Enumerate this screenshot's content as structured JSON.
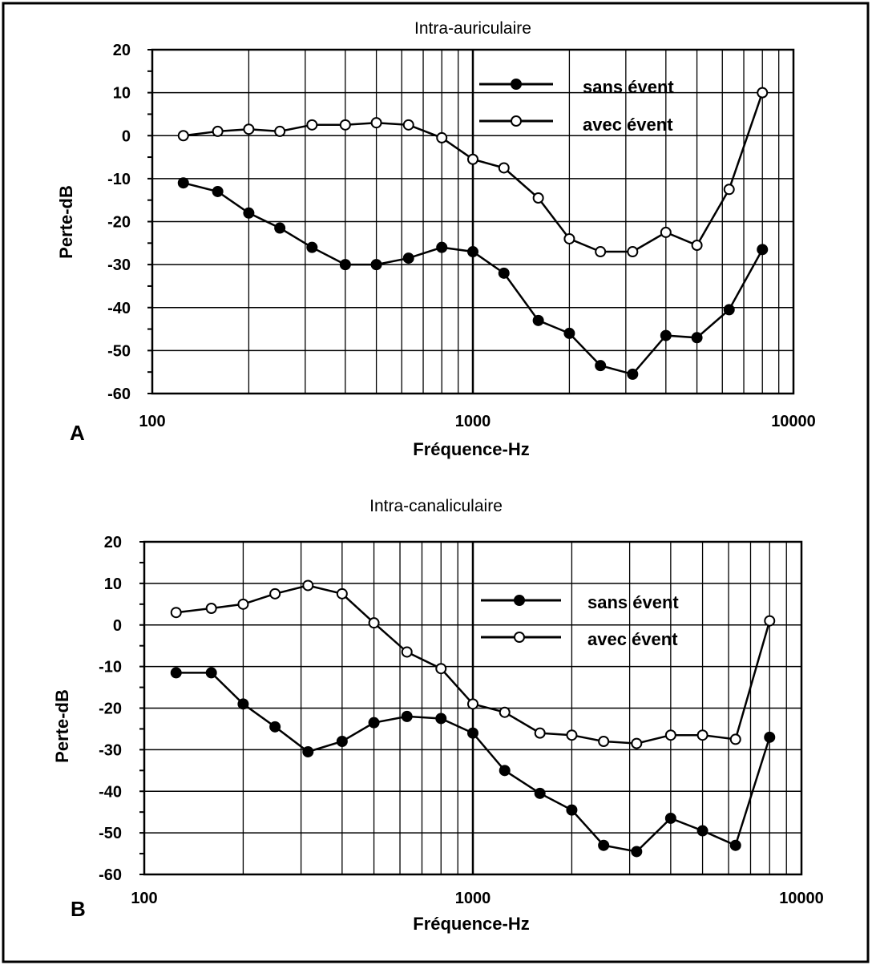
{
  "chart_data": [
    {
      "panel_label": "A",
      "type": "line",
      "title": "Intra-auriculaire",
      "xlabel": "Fréquence-Hz",
      "ylabel": "Perte-dB",
      "xscale": "log",
      "xlim": [
        100,
        10000
      ],
      "ylim": [
        -60,
        20
      ],
      "xticks": [
        "100",
        "1000",
        "10000"
      ],
      "yticks": [
        "20",
        "10",
        "0",
        "-10",
        "-20",
        "-30",
        "-40",
        "-50",
        "-60"
      ],
      "grid": true,
      "legend_position": "top-right",
      "series": [
        {
          "name": "sans évent",
          "marker": "filled-circle",
          "points": [
            [
              125,
              -11
            ],
            [
              160,
              -13
            ],
            [
              200,
              -18
            ],
            [
              250,
              -21.5
            ],
            [
              315,
              -26
            ],
            [
              400,
              -30
            ],
            [
              500,
              -30
            ],
            [
              630,
              -28.5
            ],
            [
              800,
              -26
            ],
            [
              1000,
              -27
            ],
            [
              1250,
              -32
            ],
            [
              1600,
              -43
            ],
            [
              2000,
              -46
            ],
            [
              2500,
              -53.5
            ],
            [
              3150,
              -55.5
            ],
            [
              4000,
              -46.5
            ],
            [
              5000,
              -47
            ],
            [
              6300,
              -40.5
            ],
            [
              8000,
              -26.5
            ]
          ]
        },
        {
          "name": "avec évent",
          "marker": "open-circle",
          "points": [
            [
              125,
              0
            ],
            [
              160,
              1
            ],
            [
              200,
              1.5
            ],
            [
              250,
              1
            ],
            [
              315,
              2.5
            ],
            [
              400,
              2.5
            ],
            [
              500,
              3
            ],
            [
              630,
              2.5
            ],
            [
              800,
              -0.5
            ],
            [
              1000,
              -5.5
            ],
            [
              1250,
              -7.5
            ],
            [
              1600,
              -14.5
            ],
            [
              2000,
              -24
            ],
            [
              2500,
              -27
            ],
            [
              3150,
              -27
            ],
            [
              4000,
              -22.5
            ],
            [
              5000,
              -25.5
            ],
            [
              6300,
              -12.5
            ],
            [
              8000,
              10
            ]
          ]
        }
      ]
    },
    {
      "panel_label": "B",
      "type": "line",
      "title": "Intra-canaliculaire",
      "xlabel": "Fréquence-Hz",
      "ylabel": "Perte-dB",
      "xscale": "log",
      "xlim": [
        100,
        10000
      ],
      "ylim": [
        -60,
        20
      ],
      "xticks": [
        "100",
        "1000",
        "10000"
      ],
      "yticks": [
        "20",
        "10",
        "0",
        "-10",
        "-20",
        "-30",
        "-40",
        "-50",
        "-60"
      ],
      "grid": true,
      "legend_position": "top-right",
      "series": [
        {
          "name": "sans évent",
          "marker": "filled-circle",
          "points": [
            [
              125,
              -11.5
            ],
            [
              160,
              -11.5
            ],
            [
              200,
              -19
            ],
            [
              250,
              -24.5
            ],
            [
              315,
              -30.5
            ],
            [
              400,
              -28
            ],
            [
              500,
              -23.5
            ],
            [
              630,
              -22
            ],
            [
              800,
              -22.5
            ],
            [
              1000,
              -26
            ],
            [
              1250,
              -35
            ],
            [
              1600,
              -40.5
            ],
            [
              2000,
              -44.5
            ],
            [
              2500,
              -53
            ],
            [
              3150,
              -54.5
            ],
            [
              4000,
              -46.5
            ],
            [
              5000,
              -49.5
            ],
            [
              6300,
              -53
            ],
            [
              8000,
              -27
            ]
          ]
        },
        {
          "name": "avec évent",
          "marker": "open-circle",
          "points": [
            [
              125,
              3
            ],
            [
              160,
              4
            ],
            [
              200,
              5
            ],
            [
              250,
              7.5
            ],
            [
              315,
              9.5
            ],
            [
              400,
              7.5
            ],
            [
              500,
              0.5
            ],
            [
              630,
              -6.5
            ],
            [
              800,
              -10.5
            ],
            [
              1000,
              -19
            ],
            [
              1250,
              -21
            ],
            [
              1600,
              -26
            ],
            [
              2000,
              -26.5
            ],
            [
              2500,
              -28
            ],
            [
              3150,
              -28.5
            ],
            [
              4000,
              -26.5
            ],
            [
              5000,
              -26.5
            ],
            [
              6300,
              -27.5
            ],
            [
              8000,
              1
            ]
          ]
        }
      ]
    }
  ]
}
